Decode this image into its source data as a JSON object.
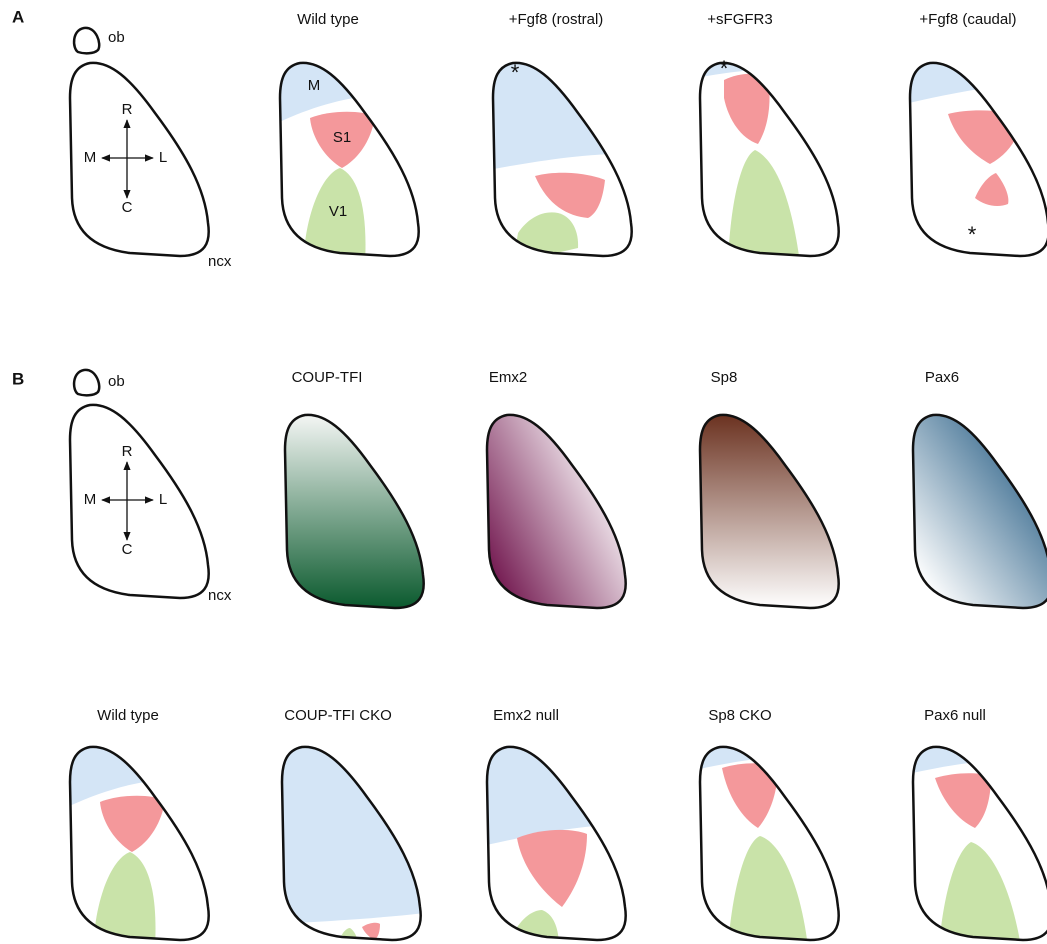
{
  "panel_a": {
    "label": "A",
    "key": {
      "ob": "ob",
      "ncx": "ncx",
      "rostral": "R",
      "caudal": "C",
      "medial": "M",
      "lateral": "L"
    },
    "titles": [
      "Wild type",
      "+Fgf8 (rostral)",
      "+sFGFR3",
      "+Fgf8 (caudal)"
    ],
    "areas": {
      "motor": "M",
      "somatosensory": "S1",
      "visual": "V1"
    },
    "asterisk": "*"
  },
  "panel_b": {
    "label": "B",
    "key": {
      "ob": "ob",
      "ncx": "ncx",
      "rostral": "R",
      "caudal": "C",
      "medial": "M",
      "lateral": "L"
    },
    "gradient_titles": [
      "COUP-TFI",
      "Emx2",
      "Sp8",
      "Pax6"
    ],
    "mutant_titles": [
      "Wild type",
      "COUP-TFI CKO",
      "Emx2 null",
      "Sp8 CKO",
      "Pax6 null"
    ]
  }
}
